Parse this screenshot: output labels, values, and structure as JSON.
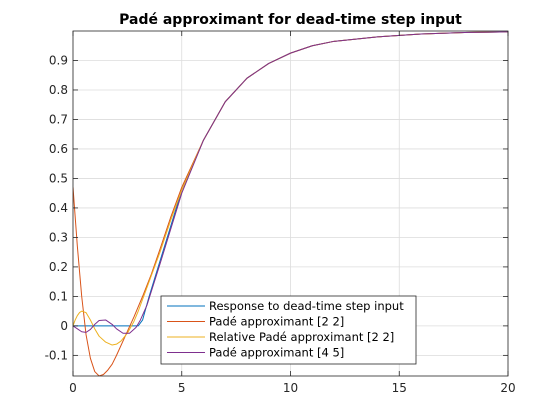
{
  "chart_data": {
    "type": "line",
    "title": "Padé approximant for dead-time step input",
    "xlabel": "",
    "ylabel": "",
    "xlim": [
      0,
      20
    ],
    "ylim": [
      -0.17,
      1.0
    ],
    "xticks": [
      0,
      5,
      10,
      15,
      20
    ],
    "yticks": [
      -0.1,
      0,
      0.1,
      0.2,
      0.3,
      0.4,
      0.5,
      0.6,
      0.7,
      0.8,
      0.9
    ],
    "grid": true,
    "legend_position": "bottom-center",
    "series": [
      {
        "name": "Response to dead-time step input",
        "color": "#0072BD",
        "x": [
          0,
          3.0,
          3.2,
          3.5,
          4.0,
          4.5,
          5.0,
          6.0,
          7.0,
          8.0,
          9.0,
          10.0,
          11.0,
          12.0,
          14.0,
          16.0,
          18.0,
          20.0
        ],
        "y": [
          0,
          0,
          0.02,
          0.1,
          0.22,
          0.34,
          0.46,
          0.63,
          0.76,
          0.84,
          0.89,
          0.925,
          0.95,
          0.965,
          0.98,
          0.99,
          0.995,
          0.997
        ]
      },
      {
        "name": "Padé approximant [2 2]",
        "color": "#D95319",
        "x": [
          0,
          0.2,
          0.4,
          0.6,
          0.8,
          1.0,
          1.2,
          1.4,
          1.6,
          1.8,
          2.0,
          2.4,
          2.8,
          3.2,
          3.6,
          4.0,
          4.5,
          5.0,
          6.0,
          7.0,
          8.0,
          9.0,
          10.0,
          11.0,
          12.0,
          14.0,
          16.0,
          18.0,
          20.0
        ],
        "y": [
          0.47,
          0.27,
          0.1,
          -0.03,
          -0.11,
          -0.155,
          -0.17,
          -0.165,
          -0.15,
          -0.13,
          -0.1,
          -0.035,
          0.03,
          0.1,
          0.175,
          0.26,
          0.37,
          0.47,
          0.63,
          0.76,
          0.84,
          0.89,
          0.925,
          0.95,
          0.965,
          0.98,
          0.99,
          0.995,
          0.997
        ]
      },
      {
        "name": "Relative Padé approximant [2 2]",
        "color": "#EDB120",
        "x": [
          0,
          0.1,
          0.2,
          0.3,
          0.4,
          0.6,
          0.8,
          1.0,
          1.2,
          1.5,
          1.8,
          2.0,
          2.2,
          2.5,
          2.8,
          3.0,
          3.3,
          3.6,
          4.0,
          4.5,
          5.0,
          6.0,
          7.0,
          8.0,
          9.0,
          10.0,
          11.0,
          12.0,
          14.0,
          16.0,
          18.0,
          20.0
        ],
        "y": [
          0.0,
          0.02,
          0.035,
          0.045,
          0.05,
          0.045,
          0.02,
          -0.01,
          -0.035,
          -0.055,
          -0.065,
          -0.062,
          -0.052,
          -0.025,
          0.015,
          0.05,
          0.11,
          0.17,
          0.25,
          0.36,
          0.46,
          0.63,
          0.76,
          0.84,
          0.89,
          0.925,
          0.95,
          0.965,
          0.98,
          0.99,
          0.995,
          0.997
        ]
      },
      {
        "name": "Padé approximant [4 5]",
        "color": "#7E2F8E",
        "x": [
          0,
          0.2,
          0.4,
          0.6,
          0.8,
          1.0,
          1.2,
          1.5,
          1.8,
          2.0,
          2.3,
          2.6,
          2.9,
          3.1,
          3.4,
          3.7,
          4.0,
          4.5,
          5.0,
          6.0,
          7.0,
          8.0,
          9.0,
          10.0,
          11.0,
          12.0,
          14.0,
          16.0,
          18.0,
          20.0
        ],
        "y": [
          0.0,
          -0.01,
          -0.02,
          -0.022,
          -0.012,
          0.005,
          0.018,
          0.02,
          0.005,
          -0.01,
          -0.025,
          -0.025,
          -0.005,
          0.02,
          0.07,
          0.14,
          0.21,
          0.33,
          0.45,
          0.63,
          0.76,
          0.84,
          0.89,
          0.925,
          0.95,
          0.965,
          0.98,
          0.99,
          0.995,
          0.997
        ]
      }
    ]
  }
}
